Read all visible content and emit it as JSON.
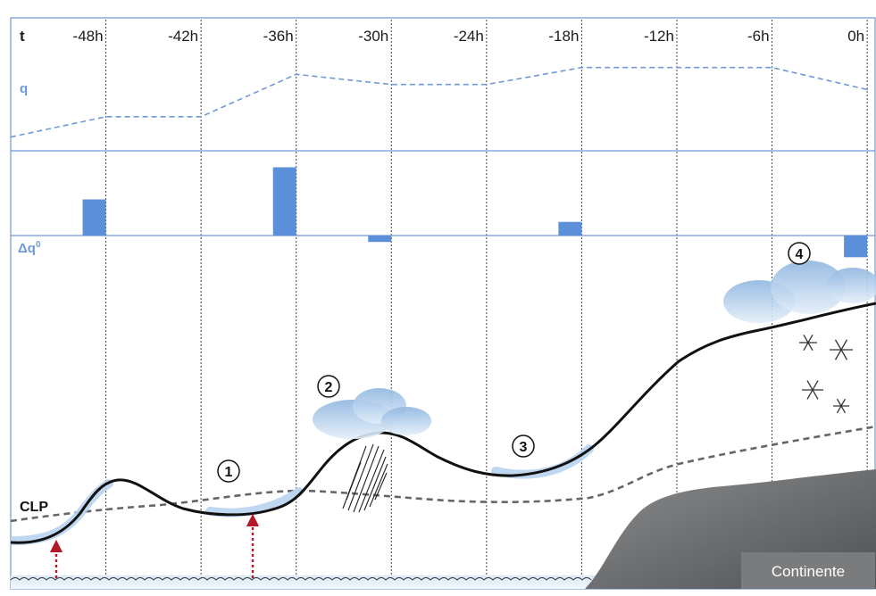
{
  "header": {
    "axis_symbol": "t",
    "time_ticks": [
      "-48h",
      "-42h",
      "-36h",
      "-30h",
      "-24h",
      "-18h",
      "-12h",
      "-6h",
      "0h"
    ]
  },
  "panels": {
    "q_label": "q",
    "dq_label": "Δq",
    "dq_superscript": "0"
  },
  "chart_data": [
    {
      "type": "line",
      "title": "",
      "ylabel": "q",
      "x": [
        -54,
        -48,
        -42,
        -36,
        -30,
        -24,
        -18,
        -12,
        -6,
        0
      ],
      "values": [
        0.12,
        0.36,
        0.36,
        0.86,
        0.74,
        0.74,
        0.94,
        0.94,
        0.94,
        0.68
      ],
      "ylim": [
        0,
        1
      ],
      "style": "dashed",
      "color": "#6f9ad6"
    },
    {
      "type": "bar",
      "title": "",
      "ylabel": "Δq0",
      "x": [
        -48,
        -36,
        -30,
        -18,
        0
      ],
      "values": [
        0.45,
        0.85,
        -0.08,
        0.17,
        -0.27
      ],
      "ylim": [
        -0.3,
        1
      ],
      "color": "#5b8fd9"
    }
  ],
  "labels": {
    "clp": "CLP",
    "continent": "Continente",
    "steps": [
      "1",
      "2",
      "3",
      "4"
    ]
  },
  "colors": {
    "accent_blue": "#5b8fd9",
    "land_gray": "#6d6e70",
    "lift_arrow_red": "#b3182a",
    "cloud_blue": "#8fb6e0"
  }
}
